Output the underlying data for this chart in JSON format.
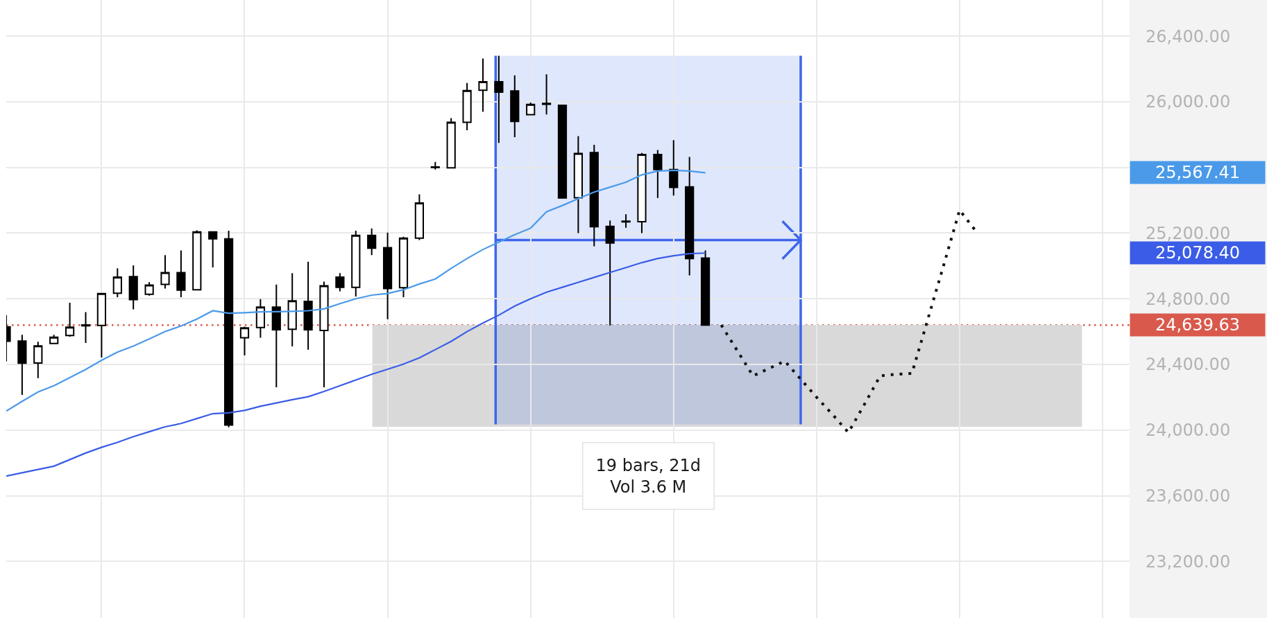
{
  "chart_data": {
    "type": "candlestick",
    "categories": [
      null,
      null,
      null,
      null,
      null,
      null,
      null,
      null,
      null,
      null,
      null,
      null,
      null,
      null,
      null,
      null,
      null,
      null,
      null,
      null,
      null,
      null,
      null,
      null,
      null,
      null,
      null,
      null,
      null,
      null,
      null,
      null,
      null,
      null,
      null,
      null,
      null,
      null,
      null,
      null,
      null,
      null,
      null,
      null,
      null,
      null,
      null,
      null,
      null,
      null,
      null,
      null,
      null,
      null,
      null,
      null,
      null,
      null,
      null,
      null,
      null,
      null,
      null,
      null,
      null,
      null,
      null,
      null,
      null,
      null,
      null
    ],
    "ohlc": [
      [
        24629,
        24700,
        24418,
        24541
      ],
      [
        24542,
        24580,
        24214,
        24407
      ],
      [
        24408,
        24538,
        24316,
        24513
      ],
      [
        24527,
        24580,
        24525,
        24566
      ],
      [
        24576,
        24775,
        24569,
        24627
      ],
      [
        24635,
        24718,
        24531,
        24640
      ],
      [
        24637,
        24836,
        24442,
        24831
      ],
      [
        24834,
        24986,
        24809,
        24932
      ],
      [
        24935,
        25003,
        24735,
        24794
      ],
      [
        24827,
        24901,
        24819,
        24883
      ],
      [
        24887,
        25066,
        24862,
        24959
      ],
      [
        24959,
        25094,
        24809,
        24853
      ],
      [
        24855,
        25217,
        24853,
        25207
      ],
      [
        25207,
        25210,
        24991,
        25165
      ],
      [
        25165,
        25214,
        24017,
        24031
      ],
      [
        24562,
        24630,
        24455,
        24623
      ],
      [
        24625,
        24798,
        24562,
        24749
      ],
      [
        24749,
        24886,
        24261,
        24611
      ],
      [
        24614,
        24956,
        24510,
        24787
      ],
      [
        24784,
        25026,
        24489,
        24611
      ],
      [
        24607,
        24904,
        24261,
        24879
      ],
      [
        24932,
        24956,
        24845,
        24869
      ],
      [
        24869,
        25214,
        24813,
        25186
      ],
      [
        25186,
        25228,
        25066,
        25108
      ],
      [
        25111,
        25203,
        24675,
        24862
      ],
      [
        24867,
        25178,
        24809,
        25169
      ],
      [
        25169,
        25436,
        25157,
        25383
      ],
      [
        25600,
        25633,
        25587,
        25603
      ],
      [
        25597,
        25900,
        25594,
        25875
      ],
      [
        25875,
        26115,
        25826,
        26068
      ],
      [
        26070,
        26263,
        25939,
        26122
      ],
      [
        26122,
        26280,
        25749,
        26059
      ],
      [
        26066,
        26161,
        25784,
        25880
      ],
      [
        25921,
        25995,
        25920,
        25984
      ],
      [
        25985,
        26167,
        25922,
        25990
      ],
      [
        25978,
        25978,
        25414,
        25414
      ],
      [
        25415,
        25791,
        25200,
        25685
      ],
      [
        25690,
        25738,
        25119,
        25239
      ],
      [
        25241,
        25277,
        24637,
        25140
      ],
      [
        25268,
        25315,
        25232,
        25272
      ],
      [
        25269,
        25688,
        25200,
        25679
      ],
      [
        25679,
        25706,
        25414,
        25587
      ],
      [
        25587,
        25766,
        25429,
        25478
      ],
      [
        25481,
        25664,
        24942,
        25045
      ],
      [
        25048,
        25094,
        24639.63,
        24639.63
      ],
      null,
      null,
      null,
      null,
      null,
      null,
      null,
      null,
      null,
      null,
      null,
      null,
      null,
      null,
      null,
      null,
      null,
      null,
      null,
      null,
      null,
      null,
      null,
      null,
      null,
      null
    ],
    "series": [
      {
        "type": "line",
        "color": "#4a9ae9",
        "values": [
          24116,
          24175,
          24232,
          24270,
          24320,
          24369,
          24425,
          24475,
          24512,
          24555,
          24600,
          24634,
          24676,
          24727,
          24712,
          24715,
          24720,
          24721,
          24723,
          24727,
          24738,
          24770,
          24800,
          24822,
          24832,
          24855,
          24890,
          24920,
          24985,
          25045,
          25100,
          25145,
          25190,
          25230,
          25330,
          25368,
          25410,
          25450,
          25480,
          25510,
          25555,
          25578,
          25582,
          25578,
          25567.41,
          null,
          null,
          null,
          null,
          null,
          null,
          null,
          null,
          null,
          null,
          null,
          null,
          null,
          null,
          null,
          null,
          null,
          null,
          null,
          null,
          null,
          null,
          null,
          null,
          null,
          null
        ]
      },
      {
        "type": "line",
        "color": "#3a5ce6",
        "values": [
          23720,
          23740,
          23760,
          23780,
          23820,
          23860,
          23895,
          23925,
          23960,
          23990,
          24020,
          24040,
          24070,
          24100,
          24105,
          24120,
          24145,
          24165,
          24185,
          24203,
          24235,
          24270,
          24305,
          24340,
          24370,
          24402,
          24440,
          24490,
          24540,
          24600,
          24652,
          24700,
          24755,
          24800,
          24840,
          24870,
          24900,
          24930,
          24960,
          24990,
          25020,
          25045,
          25062,
          25075,
          25078.4,
          null,
          null,
          null,
          null,
          null,
          null,
          null,
          null,
          null,
          null,
          null,
          null,
          null,
          null,
          null,
          null,
          null,
          null,
          null,
          null,
          null,
          null,
          null,
          null,
          null,
          null
        ]
      },
      {
        "type": "line",
        "color": "#111111",
        "line_style": "dotted",
        "values": [
          null,
          null,
          null,
          null,
          null,
          null,
          null,
          null,
          null,
          null,
          null,
          null,
          null,
          null,
          null,
          null,
          null,
          null,
          null,
          null,
          null,
          null,
          null,
          null,
          null,
          null,
          null,
          null,
          null,
          null,
          null,
          null,
          null,
          null,
          null,
          null,
          null,
          null,
          null,
          null,
          null,
          null,
          null,
          null,
          null,
          24640,
          24485,
          24330,
          24375,
          24420,
          24310,
          24200,
          24095,
          23985,
          24155,
          24330,
          24340,
          24345,
          24675,
          25005,
          25340,
          25215,
          null,
          null,
          null,
          null,
          null,
          null,
          null,
          null,
          null
        ]
      }
    ],
    "ylim": [
      22855,
      26620
    ],
    "yticks": [
      {
        "value": 23200,
        "label": "23,200.00"
      },
      {
        "value": 23600,
        "label": "23,600.00"
      },
      {
        "value": 24000,
        "label": "24,000.00"
      },
      {
        "value": 24400,
        "label": "24,400.00"
      },
      {
        "value": 24800,
        "label": "24,800.00"
      },
      {
        "value": 25200,
        "label": "25,200.00"
      },
      {
        "value": 25600,
        "label": null
      },
      {
        "value": 26000,
        "label": "26,000.00"
      },
      {
        "value": 26400,
        "label": "26,400.00"
      }
    ],
    "grid": true,
    "tick_labels": "y",
    "bands": [
      {
        "axis": "y",
        "from": 24020,
        "to": 24640,
        "color": "#d9d9d9"
      }
    ],
    "ref_lines": [
      {
        "axis": "y",
        "value": 24639.63,
        "label": "24,639.63",
        "color": "#d9594c",
        "line_style": "dotted"
      }
    ],
    "annotations": [
      "19 bars, 21d\nVol 3.6 M",
      "25,567.41",
      "25,078.40"
    ]
  }
}
